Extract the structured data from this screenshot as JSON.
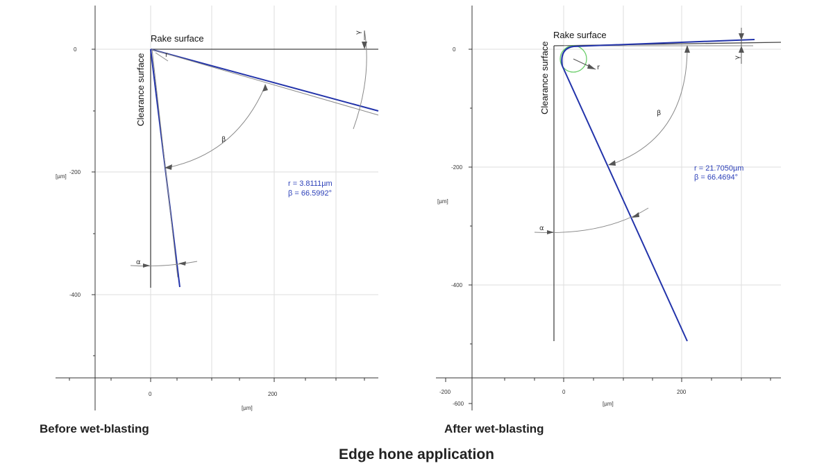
{
  "figure_title": "Edge hone application",
  "panels": [
    {
      "caption": "Before wet-blasting",
      "rake_label": "Rake surface",
      "clearance_label": "Clearance surface",
      "radius_text": "r = 3.8111µm",
      "beta_text": "β = 66.5992°",
      "unit_label": "[µm]",
      "angle_labels": [
        "r",
        "β",
        "α",
        "γ"
      ],
      "y_ticks": [
        "0",
        "-200",
        "-400"
      ],
      "x_ticks": [
        "0",
        "200"
      ]
    },
    {
      "caption": "After wet-blasting",
      "rake_label": "Rake surface",
      "clearance_label": "Clearance surface",
      "radius_text": "r = 21.7050µm",
      "beta_text": "β = 66.4694°",
      "unit_label": "[µm]",
      "angle_labels": [
        "r",
        "β",
        "α",
        "γ"
      ],
      "y_ticks": [
        "0",
        "-200",
        "-400",
        "-600"
      ],
      "x_ticks": [
        "-200",
        "0",
        "200"
      ]
    }
  ],
  "colors": {
    "profile": "#2233aa",
    "axis": "#333333",
    "grid": "#dddddd",
    "annotation": "#2b3fb8",
    "hone_circle": "#66cc66"
  }
}
